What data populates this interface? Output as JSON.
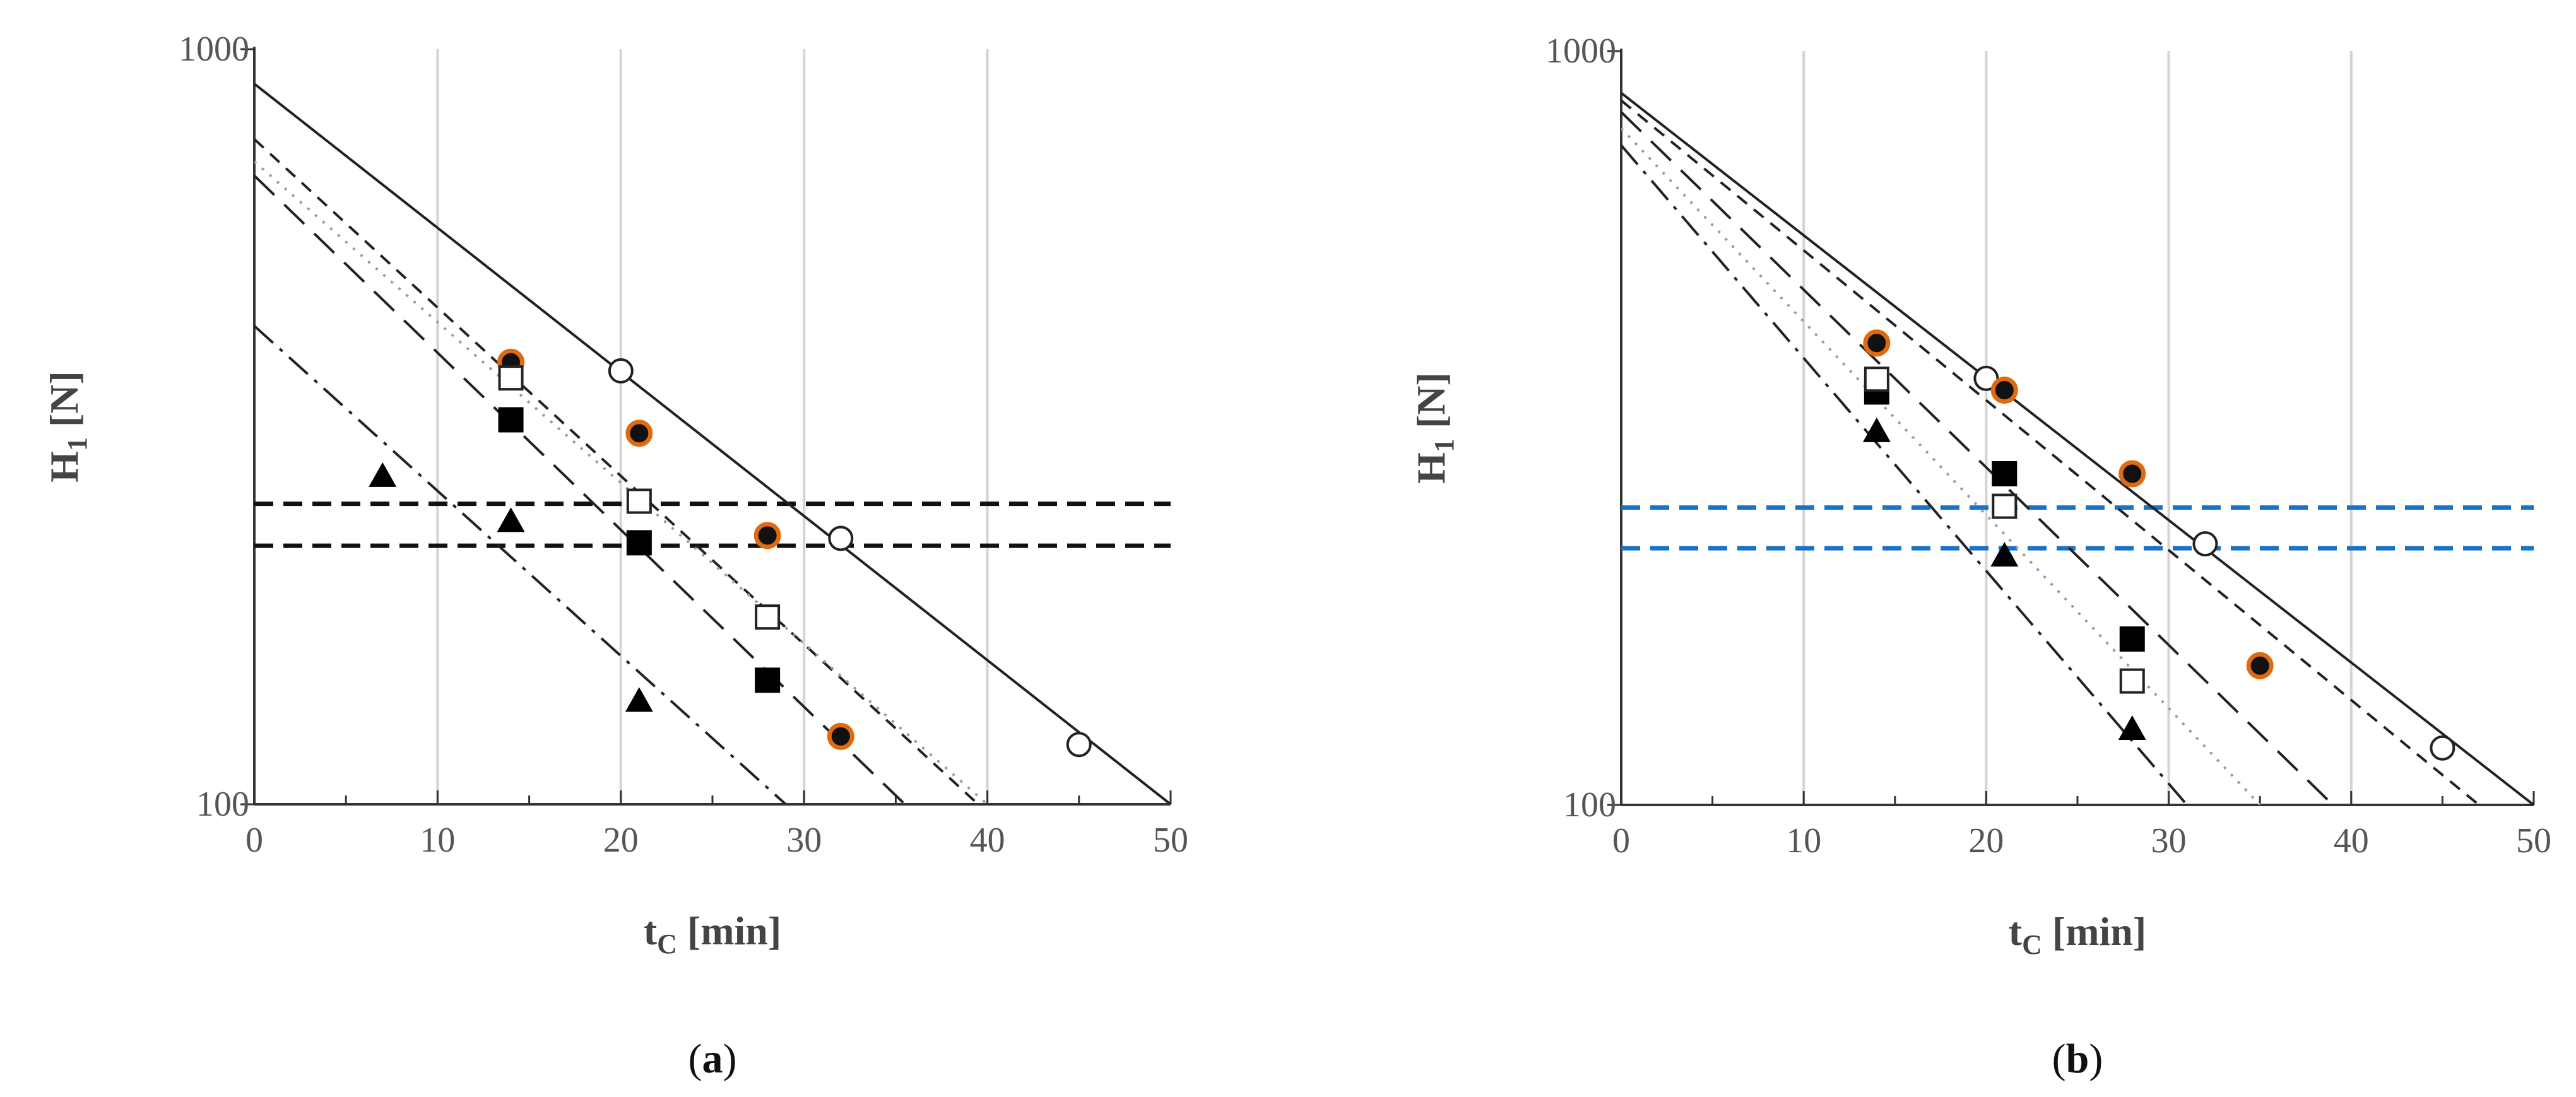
{
  "chart_data": [
    {
      "type": "scatter",
      "panel_label": "a",
      "xlabel": "t",
      "xlabel_sub": "C",
      "xlabel_unit": "[min]",
      "ylabel": "H",
      "ylabel_sub": "1",
      "ylabel_unit": "[N]",
      "xlim": [
        0,
        50
      ],
      "ylim": [
        100,
        1000
      ],
      "yscale": "log",
      "x_ticks": [
        "0",
        "10",
        "20",
        "30",
        "40",
        "50"
      ],
      "y_ticks": [
        "100",
        "1000"
      ],
      "grid": "vertical",
      "colors": {
        "orange": "#e06a10",
        "black": "#000000",
        "line": "#222222"
      },
      "series": [
        {
          "marker": "open-circle",
          "points": [
            [
              20,
              375
            ],
            [
              32,
              225
            ],
            [
              45,
              120
            ]
          ],
          "fit": {
            "x0": 0,
            "y0": 900,
            "x1": 50,
            "y1": 100
          },
          "dash": "solid"
        },
        {
          "marker": "orange-circle",
          "points": [
            [
              14,
              385
            ],
            [
              21,
              310
            ],
            [
              28,
              227
            ],
            [
              32,
              123
            ]
          ],
          "fit": {
            "x0": 0,
            "y0": 760,
            "x1": 39.5,
            "y1": 100
          },
          "dash": "short"
        },
        {
          "marker": "open-square",
          "points": [
            [
              14,
              367
            ],
            [
              21,
              252
            ],
            [
              28,
              177
            ]
          ],
          "fit": {
            "x0": 0,
            "y0": 710,
            "x1": 40,
            "y1": 100
          },
          "dash": "dot"
        },
        {
          "marker": "filled-square",
          "points": [
            [
              14,
              323
            ],
            [
              21,
              222
            ],
            [
              28,
              146
            ]
          ],
          "fit": {
            "x0": 0,
            "y0": 680,
            "x1": 35.5,
            "y1": 100
          },
          "dash": "long"
        },
        {
          "marker": "filled-triangle",
          "points": [
            [
              7,
              272
            ],
            [
              14,
              237
            ],
            [
              21,
              137
            ]
          ],
          "fit": {
            "x0": 0,
            "y0": 430,
            "x1": 29,
            "y1": 100
          },
          "dash": "dashdot"
        }
      ],
      "reference_lines": [
        {
          "y": 250,
          "color": "#111111"
        },
        {
          "y": 220,
          "color": "#111111"
        }
      ]
    },
    {
      "type": "scatter",
      "panel_label": "b",
      "xlabel": "t",
      "xlabel_sub": "C",
      "xlabel_unit": "[min]",
      "ylabel": "H",
      "ylabel_sub": "1",
      "ylabel_unit": "[N]",
      "xlim": [
        0,
        50
      ],
      "ylim": [
        100,
        1000
      ],
      "yscale": "log",
      "x_ticks": [
        "0",
        "10",
        "20",
        "30",
        "40",
        "50"
      ],
      "y_ticks": [
        "100",
        "1000"
      ],
      "grid": "vertical",
      "colors": {
        "orange": "#e06a10",
        "black": "#000000",
        "line": "#222222"
      },
      "series": [
        {
          "marker": "open-circle",
          "points": [
            [
              20,
              368
            ],
            [
              32,
              222
            ],
            [
              45,
              119
            ]
          ],
          "fit": {
            "x0": 0,
            "y0": 880,
            "x1": 50,
            "y1": 100
          },
          "dash": "solid"
        },
        {
          "marker": "orange-circle",
          "points": [
            [
              14,
              410
            ],
            [
              21,
              355
            ],
            [
              28,
              275
            ],
            [
              35,
              153
            ]
          ],
          "fit": {
            "x0": 0,
            "y0": 860,
            "x1": 47,
            "y1": 100
          },
          "dash": "short"
        },
        {
          "marker": "filled-square",
          "points": [
            [
              14,
              353
            ],
            [
              21,
              275
            ],
            [
              28,
              166
            ]
          ],
          "fit": {
            "x0": 0,
            "y0": 830,
            "x1": 39,
            "y1": 100
          },
          "dash": "long"
        },
        {
          "marker": "open-square",
          "points": [
            [
              14,
              367
            ],
            [
              21,
              249
            ],
            [
              28,
              146
            ]
          ],
          "fit": {
            "x0": 0,
            "y0": 790,
            "x1": 35,
            "y1": 100
          },
          "dash": "dot"
        },
        {
          "marker": "filled-triangle",
          "points": [
            [
              14,
              313
            ],
            [
              21,
              214
            ],
            [
              28,
              126
            ]
          ],
          "fit": {
            "x0": 0,
            "y0": 750,
            "x1": 31,
            "y1": 100
          },
          "dash": "dashdot"
        }
      ],
      "reference_lines": [
        {
          "y": 248,
          "color": "#1a72c4"
        },
        {
          "y": 219,
          "color": "#1a72c4"
        }
      ]
    }
  ]
}
